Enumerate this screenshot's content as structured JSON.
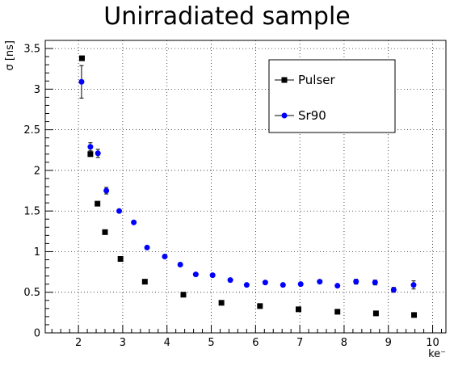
{
  "chart_data": {
    "type": "scatter",
    "title": "Unirradiated sample",
    "xlabel": "ke⁻",
    "ylabel": "σ [ns]",
    "xlim": [
      1.25,
      10.3
    ],
    "ylim": [
      0,
      3.6
    ],
    "xticks": [
      2,
      3,
      4,
      5,
      6,
      7,
      8,
      9,
      10
    ],
    "yticks": [
      0,
      0.5,
      1,
      1.5,
      2,
      2.5,
      3,
      3.5
    ],
    "ytick_labels": [
      "0",
      "0.5",
      "1",
      "1.5",
      "2",
      "2.5",
      "3",
      "3.5"
    ],
    "grid": true,
    "legend_position": "top-right",
    "series": [
      {
        "name": "Pulser",
        "marker": "square",
        "color": "#000000",
        "points": [
          {
            "x": 2.08,
            "y": 3.38,
            "err": 0
          },
          {
            "x": 2.27,
            "y": 2.2,
            "err": 0
          },
          {
            "x": 2.43,
            "y": 1.59,
            "err": 0
          },
          {
            "x": 2.6,
            "y": 1.24,
            "err": 0
          },
          {
            "x": 2.95,
            "y": 0.91,
            "err": 0
          },
          {
            "x": 3.5,
            "y": 0.63,
            "err": 0
          },
          {
            "x": 4.37,
            "y": 0.47,
            "err": 0
          },
          {
            "x": 5.23,
            "y": 0.37,
            "err": 0
          },
          {
            "x": 6.1,
            "y": 0.33,
            "err": 0
          },
          {
            "x": 6.97,
            "y": 0.29,
            "err": 0
          },
          {
            "x": 7.85,
            "y": 0.26,
            "err": 0
          },
          {
            "x": 8.72,
            "y": 0.24,
            "err": 0
          },
          {
            "x": 9.58,
            "y": 0.22,
            "err": 0
          }
        ]
      },
      {
        "name": "Sr90",
        "marker": "circle",
        "color": "#0000ff",
        "points": [
          {
            "x": 2.07,
            "y": 3.09,
            "err": 0.2
          },
          {
            "x": 2.27,
            "y": 2.29,
            "err": 0.05
          },
          {
            "x": 2.44,
            "y": 2.21,
            "err": 0.05
          },
          {
            "x": 2.63,
            "y": 1.75,
            "err": 0.04
          },
          {
            "x": 2.92,
            "y": 1.5,
            "err": 0
          },
          {
            "x": 3.25,
            "y": 1.36,
            "err": 0
          },
          {
            "x": 3.55,
            "y": 1.05,
            "err": 0
          },
          {
            "x": 3.95,
            "y": 0.94,
            "err": 0
          },
          {
            "x": 4.3,
            "y": 0.84,
            "err": 0
          },
          {
            "x": 4.65,
            "y": 0.72,
            "err": 0
          },
          {
            "x": 5.03,
            "y": 0.71,
            "err": 0
          },
          {
            "x": 5.43,
            "y": 0.65,
            "err": 0
          },
          {
            "x": 5.8,
            "y": 0.59,
            "err": 0
          },
          {
            "x": 6.22,
            "y": 0.62,
            "err": 0
          },
          {
            "x": 6.62,
            "y": 0.59,
            "err": 0
          },
          {
            "x": 7.02,
            "y": 0.6,
            "err": 0
          },
          {
            "x": 7.45,
            "y": 0.63,
            "err": 0
          },
          {
            "x": 7.85,
            "y": 0.58,
            "err": 0
          },
          {
            "x": 8.27,
            "y": 0.63,
            "err": 0.03
          },
          {
            "x": 8.7,
            "y": 0.62,
            "err": 0.03
          },
          {
            "x": 9.12,
            "y": 0.53,
            "err": 0.03
          },
          {
            "x": 9.57,
            "y": 0.59,
            "err": 0.05
          }
        ]
      }
    ]
  }
}
